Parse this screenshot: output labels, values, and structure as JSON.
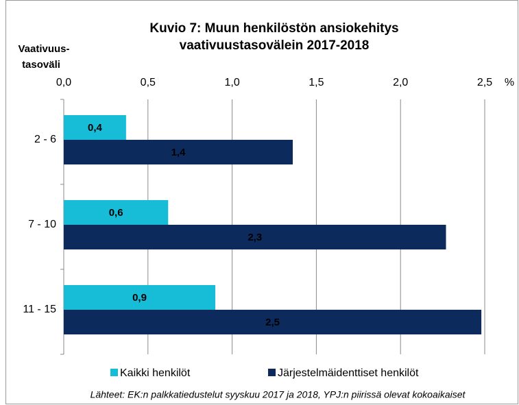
{
  "chart_data": {
    "type": "hbar",
    "title": [
      "Kuvio 7: Muun henkilöstön ansiokehitys",
      "vaativuustasovälein 2017-2018"
    ],
    "y_label": [
      "Vaativuus-",
      "tasoväli"
    ],
    "x_unit": "%",
    "categories": [
      "2 - 6",
      "7 - 10",
      "11 - 15"
    ],
    "series": [
      {
        "name": "Kaikki henkilöt",
        "color": "#17bcd6",
        "label_color": "#123a6e",
        "values": [
          0.37,
          0.62,
          0.9
        ],
        "value_labels": [
          "0,4",
          "0,6",
          "0,9"
        ]
      },
      {
        "name": "Järjestelmäidenttiset henkilöt",
        "color": "#0d2a5c",
        "label_color": "#ffffff",
        "values": [
          1.36,
          2.27,
          2.48
        ],
        "value_labels": [
          "1,4",
          "2,3",
          "2,5"
        ]
      }
    ],
    "xlim": [
      0,
      2.5
    ],
    "xticks": [
      {
        "value": 0,
        "label": "0,0"
      },
      {
        "value": 0.5,
        "label": "0,5"
      },
      {
        "value": 1,
        "label": "1,0"
      },
      {
        "value": 1.5,
        "label": "1,5"
      },
      {
        "value": 2,
        "label": "2,0"
      },
      {
        "value": 2.5,
        "label": "2,5"
      }
    ],
    "grid": true,
    "source": "Lähteet: EK:n palkkatiedustelut syyskuu 2017 ja 2018, YPJ:n piirissä olevat kokoaikaiset"
  }
}
